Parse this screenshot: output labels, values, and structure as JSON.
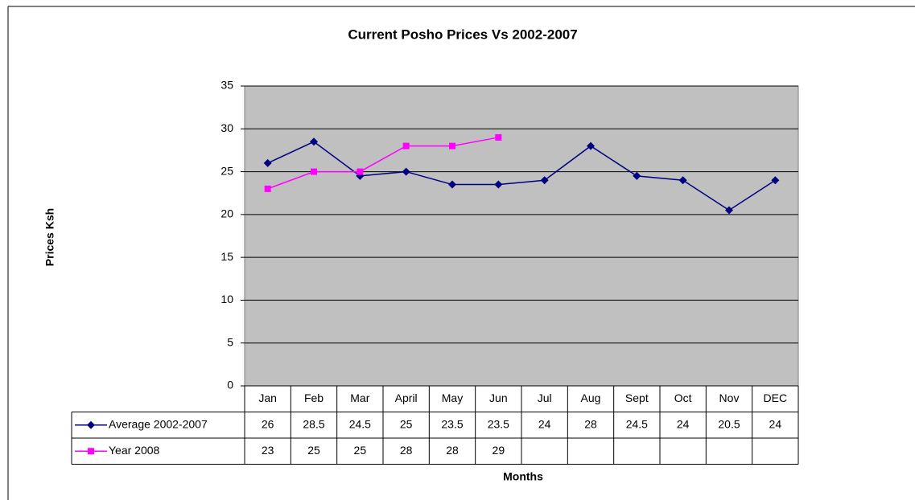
{
  "chart_data": {
    "type": "line",
    "title": "Current Posho Prices Vs 2002-2007",
    "x_label": "Months",
    "y_label": "Prices Ksh",
    "categories": [
      "Jan",
      "Feb",
      "Mar",
      "April",
      "May",
      "Jun",
      "Jul",
      "Aug",
      "Sept",
      "Oct",
      "Nov",
      "DEC"
    ],
    "series": [
      {
        "name": "Average 2002-2007",
        "color": "#000080",
        "marker": "diamond",
        "values": [
          26,
          28.5,
          24.5,
          25,
          23.5,
          23.5,
          24,
          28,
          24.5,
          24,
          20.5,
          24
        ]
      },
      {
        "name": "Year 2008",
        "color": "#ff00ff",
        "marker": "square",
        "values": [
          23,
          25,
          25,
          28,
          28,
          29,
          null,
          null,
          null,
          null,
          null,
          null
        ]
      }
    ],
    "ylim": [
      0,
      35
    ],
    "yticks": [
      0,
      5,
      10,
      15,
      20,
      25,
      30,
      35
    ],
    "grid": true,
    "plot_background": "#c0c0c0"
  }
}
